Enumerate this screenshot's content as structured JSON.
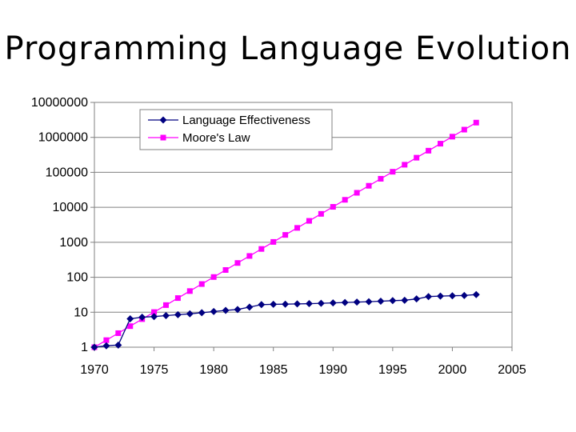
{
  "slide": {
    "title": "Programming Language Evolution"
  },
  "chart_data": {
    "type": "line",
    "x": [
      1970,
      1971,
      1972,
      1973,
      1974,
      1975,
      1976,
      1977,
      1978,
      1979,
      1980,
      1981,
      1982,
      1983,
      1984,
      1985,
      1986,
      1987,
      1988,
      1989,
      1990,
      1991,
      1992,
      1993,
      1994,
      1995,
      1996,
      1997,
      1998,
      1999,
      2000,
      2001,
      2002
    ],
    "series": [
      {
        "name": "Language Effectiveness",
        "color": "#000080",
        "marker": "diamond",
        "values": [
          1,
          1.1,
          1.15,
          6.5,
          7.2,
          7.5,
          8,
          8.5,
          9,
          9.7,
          10.5,
          11.3,
          12,
          14,
          16.5,
          16.8,
          17,
          17.3,
          17.6,
          18,
          18.5,
          19,
          19.5,
          20,
          20.7,
          21.5,
          22,
          24,
          28,
          29,
          29.5,
          30,
          32
        ]
      },
      {
        "name": "Moore's Law",
        "color": "#ff00ff",
        "marker": "square",
        "values": [
          1,
          1.59,
          2.52,
          4,
          6.35,
          10.1,
          16,
          25.4,
          40.3,
          64,
          101.6,
          161.3,
          256,
          406.4,
          645.1,
          1024,
          1625.5,
          2580.3,
          4096,
          6502,
          10321,
          16384,
          26008,
          41285,
          65536,
          104032,
          165140,
          262144,
          416128,
          660561,
          1048576,
          1664510,
          2642246
        ]
      }
    ],
    "title": "",
    "xlabel": "",
    "ylabel": "",
    "x_ticks": [
      "1970",
      "1975",
      "1980",
      "1985",
      "1990",
      "1995",
      "2000",
      "2005"
    ],
    "y_ticks": [
      "1",
      "10",
      "100",
      "1000",
      "10000",
      "100000",
      "1000000",
      "10000000"
    ],
    "xlim": [
      1970,
      2005
    ],
    "ylim": [
      1,
      10000000
    ],
    "y_scale": "log",
    "grid": true,
    "legend": "top-left"
  }
}
